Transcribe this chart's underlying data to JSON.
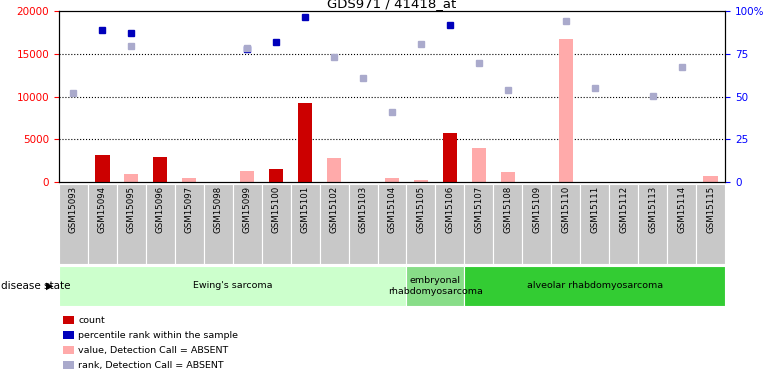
{
  "title": "GDS971 / 41418_at",
  "samples": [
    "GSM15093",
    "GSM15094",
    "GSM15095",
    "GSM15096",
    "GSM15097",
    "GSM15098",
    "GSM15099",
    "GSM15100",
    "GSM15101",
    "GSM15102",
    "GSM15103",
    "GSM15104",
    "GSM15105",
    "GSM15106",
    "GSM15107",
    "GSM15108",
    "GSM15109",
    "GSM15110",
    "GSM15111",
    "GSM15112",
    "GSM15113",
    "GSM15114",
    "GSM15115"
  ],
  "count_red": [
    null,
    3100,
    null,
    2900,
    null,
    null,
    null,
    1500,
    9200,
    null,
    null,
    null,
    null,
    5700,
    null,
    null,
    null,
    null,
    null,
    null,
    null,
    null,
    null
  ],
  "value_pink": [
    null,
    null,
    900,
    null,
    500,
    null,
    1300,
    null,
    null,
    2800,
    null,
    400,
    200,
    null,
    4000,
    1100,
    null,
    16800,
    null,
    null,
    null,
    null,
    700
  ],
  "rank_blue_dark": [
    null,
    17800,
    17500,
    null,
    null,
    null,
    15600,
    16400,
    19300,
    null,
    null,
    null,
    null,
    18400,
    null,
    null,
    null,
    null,
    null,
    null,
    null,
    null,
    null
  ],
  "rank_blue_light": [
    10400,
    null,
    15900,
    null,
    null,
    null,
    15700,
    null,
    null,
    14600,
    12200,
    8200,
    16200,
    null,
    13900,
    10800,
    null,
    18800,
    11000,
    null,
    10100,
    13500,
    null
  ],
  "ylim_left": [
    0,
    20000
  ],
  "ylim_right": [
    0,
    100
  ],
  "yticks_left": [
    0,
    5000,
    10000,
    15000,
    20000
  ],
  "yticks_right": [
    0,
    25,
    50,
    75,
    100
  ],
  "disease_groups": [
    {
      "label": "Ewing's sarcoma",
      "start": 0,
      "end": 12,
      "color": "#ccffcc"
    },
    {
      "label": "embryonal\nrhabdomyosarcoma",
      "start": 12,
      "end": 14,
      "color": "#88dd88"
    },
    {
      "label": "alveolar rhabdomyosarcoma",
      "start": 14,
      "end": 23,
      "color": "#33cc33"
    }
  ],
  "disease_state_label": "disease state",
  "legend_items": [
    {
      "label": "count",
      "color": "#cc0000"
    },
    {
      "label": "percentile rank within the sample",
      "color": "#0000bb"
    },
    {
      "label": "value, Detection Call = ABSENT",
      "color": "#ffaaaa"
    },
    {
      "label": "rank, Detection Call = ABSENT",
      "color": "#aaaacc"
    }
  ],
  "count_color": "#cc0000",
  "value_color": "#ffaaaa",
  "rank_dark_color": "#0000bb",
  "rank_light_color": "#aaaacc"
}
